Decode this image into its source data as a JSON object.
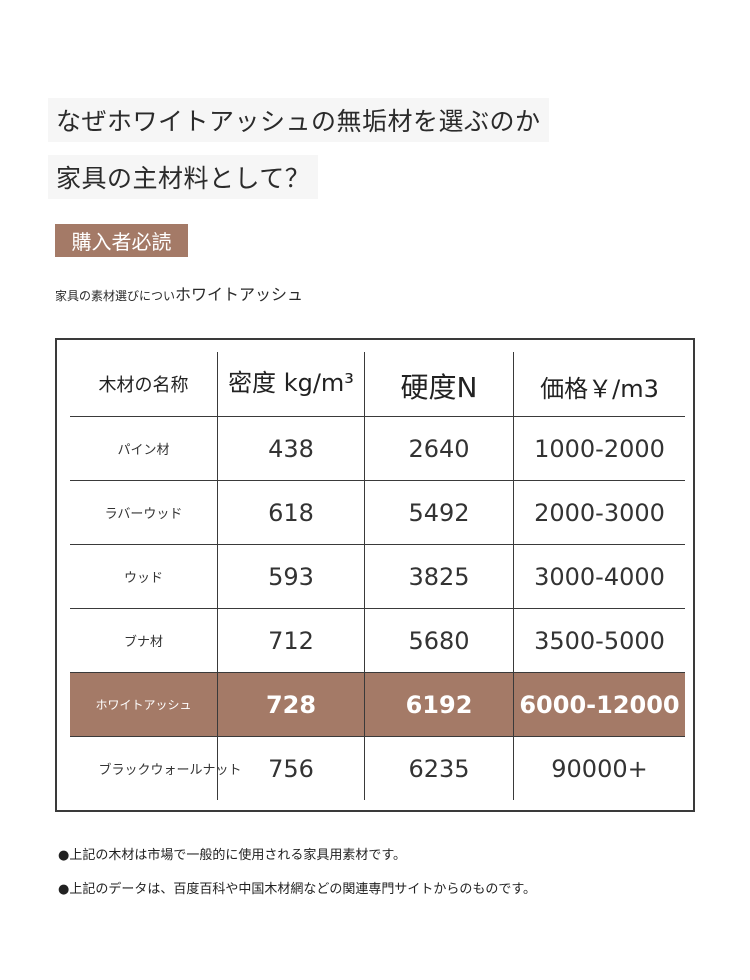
{
  "title": {
    "line1": "なぜホワイトアッシュの無垢材を選ぶのか",
    "line2": "家具の主材料として？"
  },
  "badge": "購入者必読",
  "intro": {
    "small": "家具の素材選びについ",
    "big": "ホワイトアッシュ"
  },
  "table": {
    "headers": {
      "name": "木材の名称",
      "density": "密度 kg/m³",
      "hardness": "硬度N",
      "price": "価格￥/m3"
    },
    "rows": [
      {
        "name": "パイン材",
        "density": "438",
        "hardness": "2640",
        "price": "1000-2000"
      },
      {
        "name": "ラバーウッド",
        "density": "618",
        "hardness": "5492",
        "price": "2000-3000"
      },
      {
        "name": "ウッド",
        "density": "593",
        "hardness": "3825",
        "price": "3000-4000"
      },
      {
        "name": "ブナ材",
        "density": "712",
        "hardness": "5680",
        "price": "3500-5000"
      },
      {
        "name": "ホワイトアッシュ",
        "density": "728",
        "hardness": "6192",
        "price": "6000-12000"
      },
      {
        "name": "ブラックウォールナット",
        "density": "756",
        "hardness": "6235",
        "price": "90000+"
      }
    ],
    "highlight_row": 4,
    "highlight_color": "#a47a67"
  },
  "notes": [
    "●上記の木材は市場で一般的に使用される家具用素材です。",
    "●上記のデータは、百度百科や中国木材網などの関連専門サイトからのものです。"
  ]
}
